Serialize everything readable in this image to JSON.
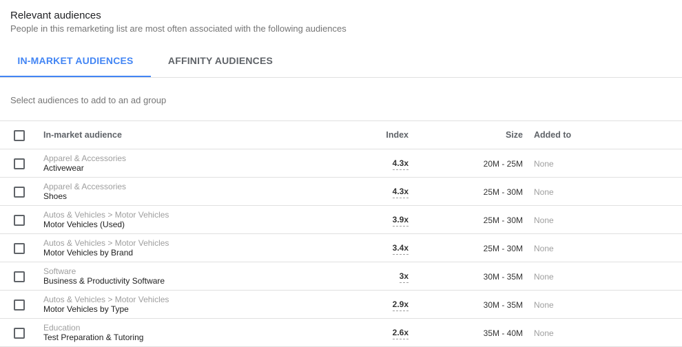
{
  "header": {
    "title": "Relevant audiences",
    "subtitle": "People in this remarketing list are most often associated with the following audiences"
  },
  "tabs": [
    {
      "label": "IN-MARKET AUDIENCES",
      "active": true
    },
    {
      "label": "AFFINITY AUDIENCES",
      "active": false
    }
  ],
  "hint": "Select audiences to add to an ad group",
  "table": {
    "columns": {
      "name": "In-market audience",
      "index": "Index",
      "size": "Size",
      "added": "Added to"
    },
    "rows": [
      {
        "category": "Apparel & Accessories",
        "name": "Activewear",
        "index": "4.3x",
        "size": "20M - 25M",
        "added": "None"
      },
      {
        "category": "Apparel & Accessories",
        "name": "Shoes",
        "index": "4.3x",
        "size": "25M - 30M",
        "added": "None"
      },
      {
        "category": "Autos & Vehicles > Motor Vehicles",
        "name": "Motor Vehicles (Used)",
        "index": "3.9x",
        "size": "25M - 30M",
        "added": "None"
      },
      {
        "category": "Autos & Vehicles > Motor Vehicles",
        "name": "Motor Vehicles by Brand",
        "index": "3.4x",
        "size": "25M - 30M",
        "added": "None"
      },
      {
        "category": "Software",
        "name": "Business & Productivity Software",
        "index": "3x",
        "size": "30M - 35M",
        "added": "None"
      },
      {
        "category": "Autos & Vehicles > Motor Vehicles",
        "name": "Motor Vehicles by Type",
        "index": "2.9x",
        "size": "30M - 35M",
        "added": "None"
      },
      {
        "category": "Education",
        "name": "Test Preparation & Tutoring",
        "index": "2.6x",
        "size": "35M - 40M",
        "added": "None"
      }
    ]
  }
}
